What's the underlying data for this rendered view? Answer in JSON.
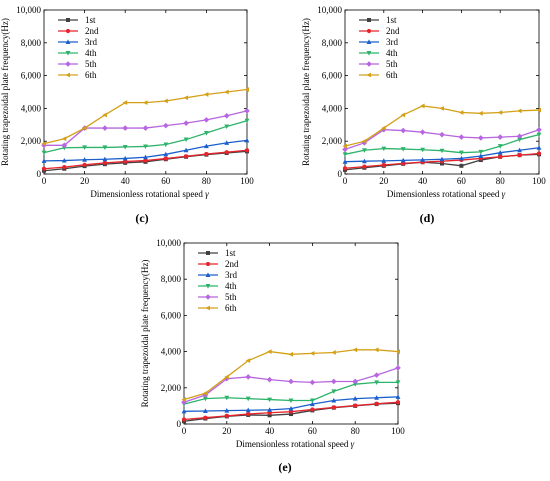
{
  "chart_data": [
    {
      "panel": "(c)",
      "type": "line",
      "xlabel": "Dimensionless rotational speed",
      "xlabel_symbol": "γ",
      "ylabel": "Rotating trapezoidal plate frequency(Hz)",
      "xlim": [
        0,
        100
      ],
      "ylim": [
        0,
        10000
      ],
      "xticks": [
        0,
        20,
        40,
        60,
        80,
        100
      ],
      "yticks": [
        0,
        2000,
        4000,
        6000,
        8000,
        10000
      ],
      "ytick_labels": [
        "0",
        "2,000",
        "4,000",
        "6,000",
        "8,000",
        "10,000"
      ],
      "legend_position": "top-left",
      "x": [
        0,
        10,
        20,
        30,
        40,
        50,
        60,
        70,
        80,
        90,
        100
      ],
      "series": [
        {
          "name": "1st",
          "color": "#404040",
          "marker": "square",
          "values": [
            200,
            320,
            480,
            600,
            680,
            740,
            900,
            1050,
            1180,
            1280,
            1380
          ]
        },
        {
          "name": "2nd",
          "color": "#e8232b",
          "marker": "circle",
          "values": [
            320,
            420,
            560,
            680,
            760,
            820,
            940,
            1080,
            1220,
            1330,
            1450
          ]
        },
        {
          "name": "3rd",
          "color": "#1b5fcc",
          "marker": "triangle-up",
          "values": [
            800,
            820,
            870,
            900,
            950,
            1020,
            1200,
            1450,
            1700,
            1900,
            2050
          ]
        },
        {
          "name": "4th",
          "color": "#2db36a",
          "marker": "triangle-down",
          "values": [
            1300,
            1600,
            1620,
            1620,
            1650,
            1680,
            1800,
            2100,
            2500,
            2900,
            3250
          ]
        },
        {
          "name": "5th",
          "color": "#b765e0",
          "marker": "diamond",
          "values": [
            1750,
            1750,
            2800,
            2800,
            2800,
            2800,
            2950,
            3100,
            3300,
            3550,
            3850
          ]
        },
        {
          "name": "6th",
          "color": "#d4a017",
          "marker": "triangle-left",
          "values": [
            1850,
            2150,
            2800,
            3600,
            4350,
            4350,
            4450,
            4650,
            4850,
            5000,
            5150
          ]
        }
      ]
    },
    {
      "panel": "(d)",
      "type": "line",
      "xlabel": "Dimensionless rotational speed",
      "xlabel_symbol": "γ",
      "ylabel": "Rotating trapezoidal plate frequency(Hz)",
      "xlim": [
        0,
        100
      ],
      "ylim": [
        0,
        10000
      ],
      "xticks": [
        0,
        20,
        40,
        60,
        80,
        100
      ],
      "yticks": [
        0,
        2000,
        4000,
        6000,
        8000,
        10000
      ],
      "ytick_labels": [
        "0",
        "2,000",
        "4,000",
        "6,000",
        "8,000",
        "10,000"
      ],
      "legend_position": "top-left",
      "x": [
        0,
        10,
        20,
        30,
        40,
        50,
        60,
        70,
        80,
        90,
        100
      ],
      "series": [
        {
          "name": "1st",
          "color": "#404040",
          "marker": "square",
          "values": [
            250,
            380,
            500,
            620,
            720,
            640,
            500,
            850,
            1050,
            1150,
            1200
          ]
        },
        {
          "name": "2nd",
          "color": "#e8232b",
          "marker": "circle",
          "values": [
            350,
            450,
            550,
            650,
            720,
            780,
            850,
            950,
            1050,
            1150,
            1250
          ]
        },
        {
          "name": "3rd",
          "color": "#1b5fcc",
          "marker": "triangle-up",
          "values": [
            750,
            780,
            800,
            830,
            860,
            900,
            950,
            1100,
            1300,
            1450,
            1600
          ]
        },
        {
          "name": "4th",
          "color": "#2db36a",
          "marker": "triangle-down",
          "values": [
            1200,
            1450,
            1550,
            1520,
            1480,
            1420,
            1300,
            1350,
            1700,
            2100,
            2400
          ]
        },
        {
          "name": "5th",
          "color": "#b765e0",
          "marker": "diamond",
          "values": [
            1500,
            1900,
            2700,
            2650,
            2550,
            2400,
            2250,
            2200,
            2250,
            2300,
            2700
          ]
        },
        {
          "name": "6th",
          "color": "#d4a017",
          "marker": "triangle-left",
          "values": [
            1700,
            2000,
            2800,
            3600,
            4150,
            4000,
            3750,
            3700,
            3750,
            3850,
            3900
          ]
        }
      ]
    },
    {
      "panel": "(e)",
      "type": "line",
      "xlabel": "Dimensionless rotational speed",
      "xlabel_symbol": "γ",
      "ylabel": "Rotating trapezoidal plate frequency(Hz)",
      "xlim": [
        0,
        100
      ],
      "ylim": [
        0,
        10000
      ],
      "xticks": [
        0,
        20,
        40,
        60,
        80,
        100
      ],
      "yticks": [
        0,
        2000,
        4000,
        6000,
        8000,
        10000
      ],
      "ytick_labels": [
        "0",
        "2,000",
        "4,000",
        "6,000",
        "8,000",
        "10,000"
      ],
      "legend_position": "top-left",
      "x": [
        0,
        10,
        20,
        30,
        40,
        50,
        60,
        70,
        80,
        90,
        100
      ],
      "series": [
        {
          "name": "1st",
          "color": "#404040",
          "marker": "square",
          "values": [
            150,
            300,
            420,
            500,
            480,
            550,
            750,
            900,
            1000,
            1100,
            1150
          ]
        },
        {
          "name": "2nd",
          "color": "#e8232b",
          "marker": "circle",
          "values": [
            250,
            350,
            450,
            550,
            620,
            680,
            800,
            920,
            1020,
            1120,
            1200
          ]
        },
        {
          "name": "3rd",
          "color": "#1b5fcc",
          "marker": "triangle-up",
          "values": [
            700,
            720,
            740,
            760,
            780,
            850,
            1100,
            1300,
            1400,
            1450,
            1500
          ]
        },
        {
          "name": "4th",
          "color": "#2db36a",
          "marker": "triangle-down",
          "values": [
            1100,
            1400,
            1450,
            1400,
            1350,
            1300,
            1300,
            1800,
            2200,
            2300,
            2300
          ]
        },
        {
          "name": "5th",
          "color": "#b765e0",
          "marker": "diamond",
          "values": [
            1200,
            1600,
            2500,
            2600,
            2450,
            2350,
            2300,
            2350,
            2350,
            2700,
            3100
          ]
        },
        {
          "name": "6th",
          "color": "#d4a017",
          "marker": "triangle-left",
          "values": [
            1350,
            1700,
            2600,
            3500,
            4000,
            3850,
            3900,
            3950,
            4100,
            4100,
            4000
          ]
        }
      ]
    }
  ]
}
